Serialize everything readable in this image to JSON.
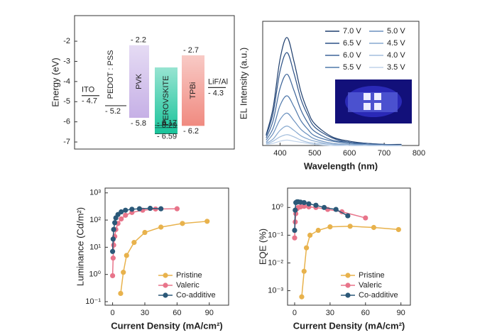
{
  "chart_data": [
    {
      "type": "energy",
      "ylabel": "Energy (eV)",
      "ylim": [
        -7.35,
        -0.73
      ],
      "yticks": [
        -2,
        -3,
        -4,
        -5,
        -6,
        -7
      ],
      "layers": [
        {
          "name": "ITO",
          "level": -4.7,
          "level_label": "- 4.7"
        },
        {
          "name": "PEDOT : PSS",
          "level": -5.2,
          "level_label": "- 5.2"
        },
        {
          "name": "PVK",
          "top": -2.2,
          "bottom": -5.8,
          "top_label": "- 2.2",
          "bottom_label": "- 5.8",
          "color": "#c6b0e6"
        },
        {
          "name": "PEROVSKITE",
          "top": -3.3,
          "bottom": -6.59,
          "color": "#19c39a",
          "levels": [
            -6.17,
            -6.29,
            -6.59
          ],
          "level_labels": [
            "- 6.17",
            "- 6.29",
            "- 6.59"
          ]
        },
        {
          "name": "TPBi",
          "top": -2.7,
          "bottom": -6.2,
          "top_label": "- 2.7",
          "bottom_label": "- 6.2",
          "color": "#f08a80"
        },
        {
          "name": "LiF/Al",
          "level": -4.3,
          "level_label": "- 4.3"
        }
      ]
    },
    {
      "type": "line",
      "smooth": true,
      "xlabel": "Wavelength (nm)",
      "ylabel": "EL Intensity (a.u.)",
      "xlim": [
        350,
        800
      ],
      "xticks": [
        400,
        500,
        600,
        700,
        800
      ],
      "ylim": [
        0,
        1.15
      ],
      "legend": "upper right",
      "x": [
        360,
        380,
        400,
        420,
        440,
        460,
        480,
        500,
        550,
        600,
        650,
        700,
        750
      ],
      "series": [
        {
          "name": "7.0 V",
          "color": "#1f3f6e",
          "values": [
            0.1,
            0.35,
            0.8,
            1,
            0.78,
            0.5,
            0.32,
            0.2,
            0.08,
            0.04,
            0.02,
            0.01,
            0.01
          ]
        },
        {
          "name": "6.5 V",
          "color": "#2c5186",
          "values": [
            0.09,
            0.3,
            0.69,
            0.86,
            0.67,
            0.43,
            0.28,
            0.17,
            0.07,
            0.03,
            0.02,
            0.01,
            0
          ]
        },
        {
          "name": "6.0 V",
          "color": "#3d6498",
          "values": [
            0.07,
            0.23,
            0.53,
            0.66,
            0.51,
            0.33,
            0.21,
            0.13,
            0.05,
            0.03,
            0.01,
            0.01,
            0
          ]
        },
        {
          "name": "5.5 V",
          "color": "#4f78aa",
          "values": [
            0.05,
            0.16,
            0.37,
            0.46,
            0.36,
            0.23,
            0.15,
            0.09,
            0.04,
            0.02,
            0.01,
            0,
            0
          ]
        },
        {
          "name": "5.0 V",
          "color": "#6b91bf",
          "values": [
            0.03,
            0.11,
            0.24,
            0.3,
            0.23,
            0.15,
            0.1,
            0.06,
            0.02,
            0.01,
            0.01,
            0,
            0
          ]
        },
        {
          "name": "4.5 V",
          "color": "#86a8cf",
          "values": [
            0.02,
            0.06,
            0.14,
            0.18,
            0.14,
            0.09,
            0.06,
            0.04,
            0.01,
            0.01,
            0,
            0,
            0
          ]
        },
        {
          "name": "4.0 V",
          "color": "#a3bedd",
          "values": [
            0.01,
            0.04,
            0.08,
            0.1,
            0.08,
            0.05,
            0.03,
            0.02,
            0.01,
            0,
            0,
            0,
            0
          ]
        },
        {
          "name": "3.5 V",
          "color": "#c0d3ea",
          "values": [
            0.01,
            0.02,
            0.04,
            0.05,
            0.04,
            0.03,
            0.02,
            0.01,
            0,
            0,
            0,
            0,
            0
          ]
        }
      ]
    },
    {
      "type": "line",
      "markers": true,
      "log_y": true,
      "xlabel": "Current Density (mA/cm²)",
      "ylabel": "Luminance (Cd/m²)",
      "xlim": [
        -7,
        108
      ],
      "xticks": [
        0,
        30,
        60,
        90
      ],
      "ylim": [
        0.074,
        1500
      ],
      "legend": "lower right",
      "yticks": [
        {
          "value": 0.1,
          "label": "10⁻¹"
        },
        {
          "value": 1,
          "label": "10⁰"
        },
        {
          "value": 10,
          "label": "10¹"
        },
        {
          "value": 100,
          "label": "10²"
        },
        {
          "value": 1000,
          "label": "10³"
        }
      ],
      "series": [
        {
          "name": "Pristine",
          "color": "#e8b24c",
          "x": [
            7.5,
            10,
            13,
            20,
            30,
            45,
            65,
            88
          ],
          "values": [
            0.2,
            1.2,
            5,
            15,
            35,
            55,
            75,
            90
          ]
        },
        {
          "name": "Valeric",
          "color": "#e8748a",
          "x": [
            0,
            0.5,
            1,
            2,
            3,
            5,
            8,
            12,
            18,
            28,
            40,
            60
          ],
          "values": [
            0.9,
            4,
            12,
            25,
            45,
            75,
            110,
            150,
            190,
            230,
            255,
            260
          ]
        },
        {
          "name": "Co-additive",
          "color": "#2b5878",
          "x": [
            0,
            0.5,
            1,
            2,
            3,
            5,
            8,
            12,
            18,
            25,
            35,
            45
          ],
          "values": [
            7,
            20,
            45,
            80,
            120,
            160,
            200,
            230,
            250,
            260,
            270,
            260
          ]
        }
      ]
    },
    {
      "type": "line",
      "markers": true,
      "log_y": true,
      "xlabel": "Current Density (mA/cm²)",
      "ylabel": "EQE (%)",
      "xlim": [
        -6,
        98
      ],
      "xticks": [
        0,
        30,
        60,
        90
      ],
      "ylim": [
        0.0003,
        5
      ],
      "legend": "lower right",
      "yticks": [
        {
          "value": 0.001,
          "label": "10⁻³"
        },
        {
          "value": 0.01,
          "label": "10⁻²"
        },
        {
          "value": 0.1,
          "label": "10⁻¹"
        },
        {
          "value": 1,
          "label": "10⁰"
        }
      ],
      "series": [
        {
          "name": "Pristine",
          "color": "#e8b24c",
          "x": [
            6,
            8,
            10,
            13,
            20,
            30,
            47,
            67,
            88
          ],
          "values": [
            0.0006,
            0.005,
            0.035,
            0.1,
            0.15,
            0.2,
            0.21,
            0.19,
            0.16
          ]
        },
        {
          "name": "Valeric",
          "color": "#e8748a",
          "x": [
            0,
            0.5,
            1,
            2,
            3,
            5,
            8,
            12,
            18,
            28,
            40,
            60
          ],
          "values": [
            0.08,
            0.3,
            0.6,
            0.9,
            1,
            1.05,
            1.1,
            1.05,
            1,
            0.85,
            0.7,
            0.42
          ]
        },
        {
          "name": "Co-additive",
          "color": "#2b5878",
          "x": [
            0,
            0.5,
            1,
            2,
            3,
            5,
            8,
            12,
            18,
            25,
            35,
            45
          ],
          "values": [
            0.15,
            0.8,
            1.5,
            1.6,
            1.6,
            1.55,
            1.5,
            1.35,
            1.2,
            1,
            0.85,
            0.5
          ]
        }
      ]
    }
  ]
}
